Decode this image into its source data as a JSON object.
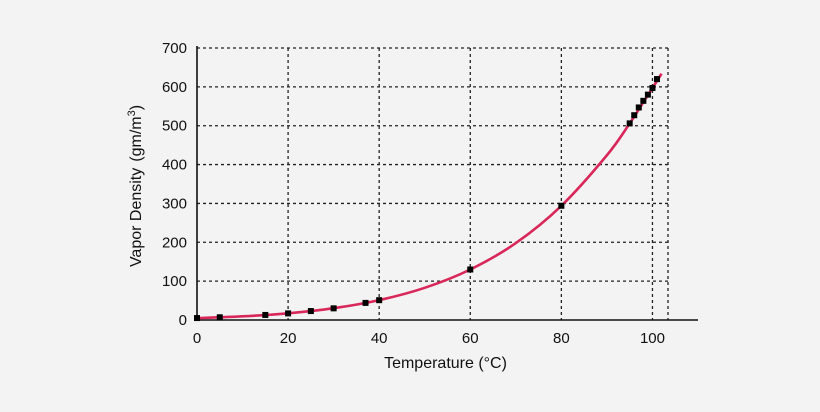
{
  "chart_data": {
    "type": "scatter",
    "xlabel": "Temperature (°C)",
    "ylabel": "Vapor Density",
    "ylabel_unit_prefix": "(gm/m",
    "ylabel_unit_sup": "3",
    "ylabel_unit_suffix": ")",
    "xlim": [
      0,
      110
    ],
    "ylim": [
      0,
      700
    ],
    "xticks": [
      0,
      20,
      40,
      60,
      80,
      100
    ],
    "yticks": [
      0,
      100,
      200,
      300,
      400,
      500,
      600,
      700
    ],
    "grid": true,
    "series": [
      {
        "kind": "measured-points",
        "x": [
          0,
          5,
          15,
          20,
          25,
          30,
          37,
          40,
          60,
          80,
          95,
          96,
          97,
          98,
          99,
          100,
          101
        ],
        "y": [
          5,
          7,
          13,
          17,
          23,
          30,
          44,
          51,
          130,
          294,
          506,
          527,
          547,
          564,
          580,
          597,
          620
        ]
      },
      {
        "kind": "fitted-curve",
        "x": [
          0,
          10,
          20,
          30,
          40,
          50,
          60,
          70,
          80,
          90,
          95,
          100,
          102
        ],
        "y": [
          4.8,
          9.4,
          17.3,
          30.4,
          51.1,
          82.8,
          130,
          198,
          294,
          424,
          506,
          597,
          634
        ]
      }
    ],
    "colors": {
      "curve": "#d9275a",
      "points": "#000000",
      "grid": "#222222"
    }
  }
}
